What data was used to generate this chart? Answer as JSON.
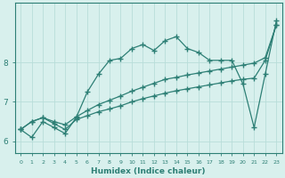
{
  "xlabel": "Humidex (Indice chaleur)",
  "bg_color": "#d8f0ed",
  "line_color": "#2d7f75",
  "grid_color": "#b8ddd9",
  "x_data": [
    0,
    1,
    2,
    3,
    4,
    5,
    6,
    7,
    8,
    9,
    10,
    11,
    12,
    13,
    14,
    15,
    16,
    17,
    18,
    19,
    20,
    21,
    22,
    23
  ],
  "series1": [
    6.3,
    6.1,
    6.5,
    6.35,
    6.2,
    6.6,
    7.25,
    7.7,
    8.05,
    8.1,
    8.35,
    8.45,
    8.3,
    8.55,
    8.65,
    8.35,
    8.25,
    8.05,
    8.05,
    8.05,
    7.45,
    6.35,
    7.7,
    9.05
  ],
  "series2": [
    6.3,
    6.5,
    6.6,
    6.45,
    6.3,
    6.55,
    6.65,
    6.75,
    6.82,
    6.9,
    7.0,
    7.08,
    7.15,
    7.22,
    7.28,
    7.33,
    7.38,
    7.43,
    7.48,
    7.53,
    7.57,
    7.6,
    8.05,
    8.95
  ],
  "series3": [
    6.3,
    6.5,
    6.6,
    6.5,
    6.42,
    6.62,
    6.78,
    6.93,
    7.04,
    7.15,
    7.27,
    7.37,
    7.47,
    7.57,
    7.62,
    7.68,
    7.73,
    7.78,
    7.83,
    7.88,
    7.93,
    7.98,
    8.12,
    8.95
  ],
  "yticks": [
    6,
    7,
    8
  ],
  "ylim": [
    5.7,
    9.5
  ],
  "xlim": [
    -0.5,
    23.5
  ]
}
